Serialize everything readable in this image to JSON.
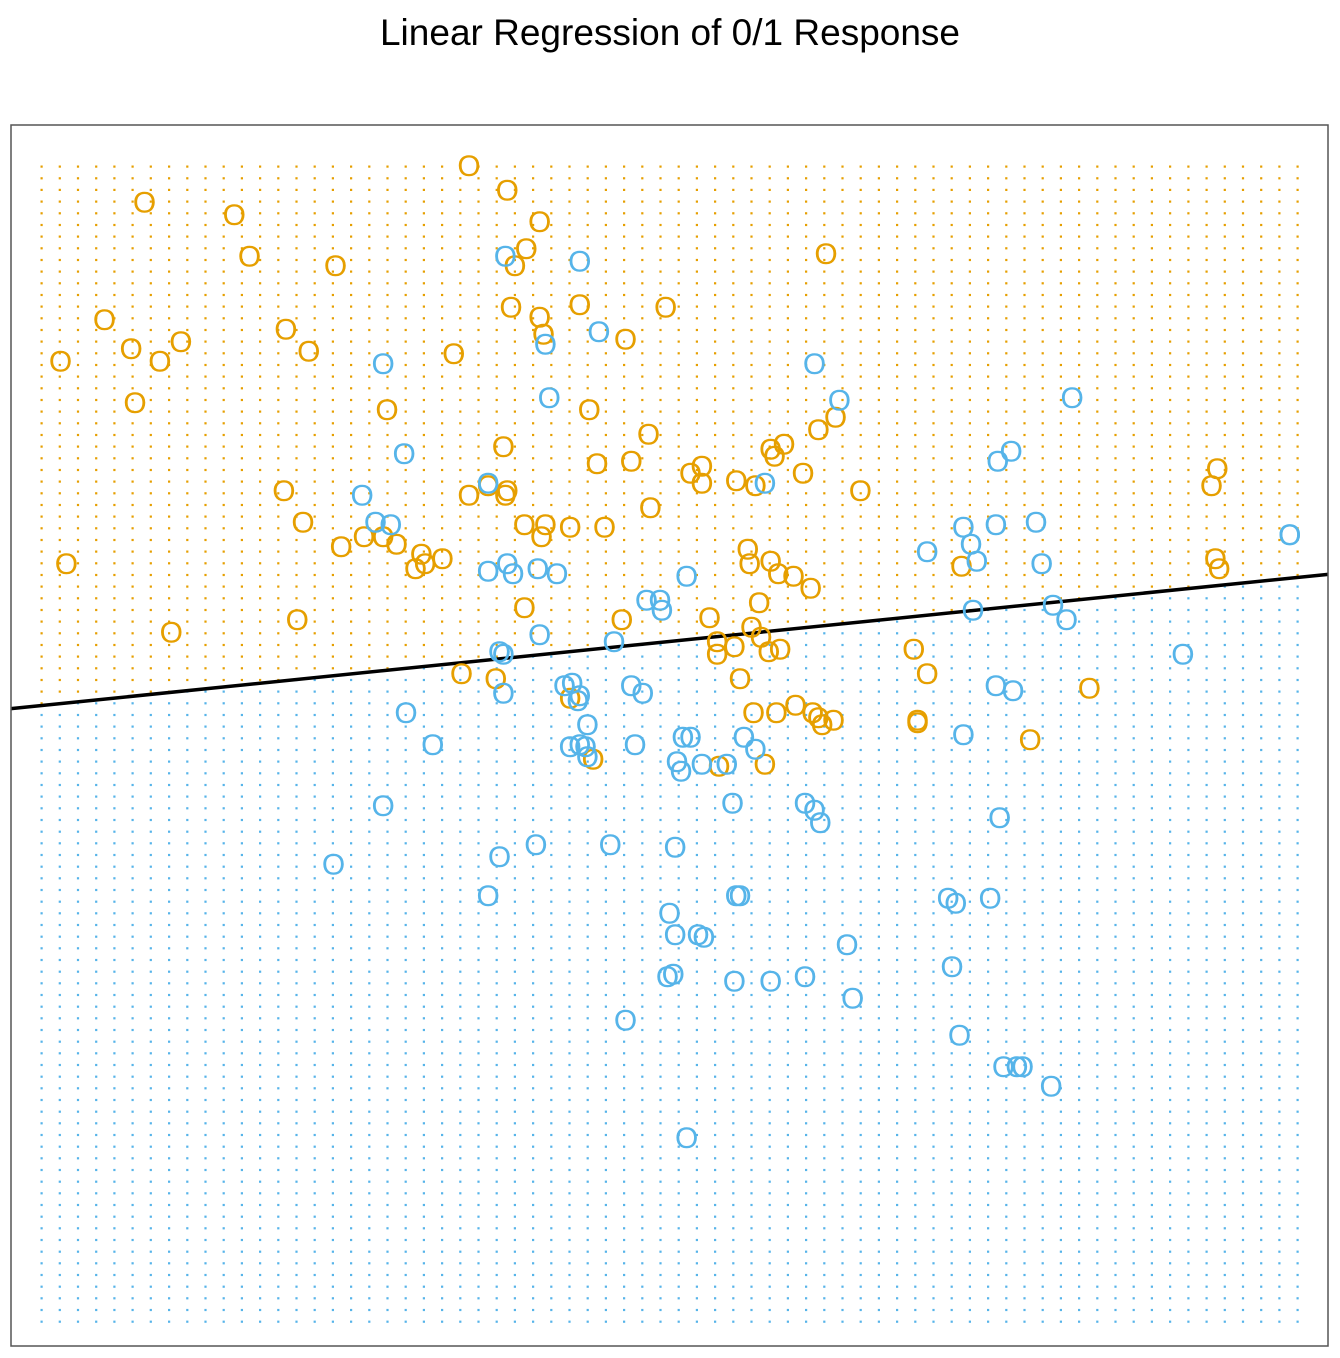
{
  "chart_data": {
    "type": "scatter",
    "title": "Linear Regression of 0/1 Response",
    "xlabel": "",
    "ylabel": "",
    "marker_glyph": "O",
    "grid": false,
    "legend": "none",
    "axes_ticks": false,
    "xlim": [
      -2.6,
      4.3
    ],
    "ylim": [
      -2.1,
      2.9
    ],
    "colors": {
      "orange": "#E69F00",
      "blue": "#56B4E9",
      "line": "#000000",
      "frame": "#555555"
    },
    "decision_boundary": {
      "x": [
        -2.6,
        4.3
      ],
      "y": [
        0.51,
        1.06
      ]
    },
    "background_grid_points": {
      "nx": 70,
      "ny": 100,
      "x_range": [
        -2.44,
        4.14
      ],
      "y_range": [
        -2.0,
        2.73
      ]
    },
    "series": [
      {
        "color": "orange",
        "points": [
          [
            -0.2,
            2.73
          ],
          [
            0.0,
            2.63
          ],
          [
            0.17,
            2.5
          ],
          [
            -1.9,
            2.58
          ],
          [
            -1.43,
            2.53
          ],
          [
            -1.35,
            2.36
          ],
          [
            -0.9,
            2.32
          ],
          [
            0.04,
            2.32
          ],
          [
            0.1,
            2.39
          ],
          [
            1.67,
            2.37
          ],
          [
            -2.11,
            2.1
          ],
          [
            -1.97,
            1.98
          ],
          [
            -1.82,
            1.93
          ],
          [
            -1.71,
            2.01
          ],
          [
            -1.16,
            2.06
          ],
          [
            -1.04,
            1.97
          ],
          [
            -0.28,
            1.96
          ],
          [
            0.02,
            2.15
          ],
          [
            0.17,
            2.11
          ],
          [
            0.19,
            2.04
          ],
          [
            0.38,
            2.16
          ],
          [
            0.62,
            2.02
          ],
          [
            0.83,
            2.15
          ],
          [
            -2.34,
            1.93
          ],
          [
            -1.95,
            1.76
          ],
          [
            -0.63,
            1.73
          ],
          [
            -0.02,
            1.58
          ],
          [
            0.43,
            1.73
          ],
          [
            0.47,
            1.51
          ],
          [
            0.65,
            1.52
          ],
          [
            0.74,
            1.63
          ],
          [
            1.4,
            1.54
          ],
          [
            1.45,
            1.59
          ],
          [
            1.55,
            1.47
          ],
          [
            1.63,
            1.65
          ],
          [
            1.72,
            1.7
          ],
          [
            1.38,
            1.57
          ],
          [
            1.3,
            1.42
          ],
          [
            1.85,
            1.4
          ],
          [
            -1.17,
            1.4
          ],
          [
            -1.07,
            1.27
          ],
          [
            -0.87,
            1.17
          ],
          [
            -0.75,
            1.21
          ],
          [
            -0.65,
            1.21
          ],
          [
            -0.58,
            1.18
          ],
          [
            -0.48,
            1.08
          ],
          [
            -0.45,
            1.14
          ],
          [
            -0.43,
            1.1
          ],
          [
            -0.34,
            1.12
          ],
          [
            -0.2,
            1.38
          ],
          [
            -0.1,
            1.42
          ],
          [
            -0.01,
            1.38
          ],
          [
            0.0,
            1.4
          ],
          [
            0.09,
            1.26
          ],
          [
            0.18,
            1.21
          ],
          [
            0.2,
            1.26
          ],
          [
            0.33,
            1.25
          ],
          [
            0.51,
            1.25
          ],
          [
            0.75,
            1.33
          ],
          [
            0.96,
            1.47
          ],
          [
            1.02,
            1.43
          ],
          [
            1.02,
            1.5
          ],
          [
            1.2,
            1.44
          ],
          [
            1.26,
            1.16
          ],
          [
            1.27,
            1.1
          ],
          [
            1.38,
            1.11
          ],
          [
            1.42,
            1.06
          ],
          [
            1.5,
            1.05
          ],
          [
            1.59,
            1.0
          ],
          [
            1.32,
            0.94
          ],
          [
            1.28,
            0.84
          ],
          [
            1.06,
            0.88
          ],
          [
            0.6,
            0.87
          ],
          [
            0.09,
            0.92
          ],
          [
            -2.31,
            1.1
          ],
          [
            -1.76,
            0.82
          ],
          [
            -1.1,
            0.87
          ],
          [
            -0.24,
            0.65
          ],
          [
            -0.06,
            0.63
          ],
          [
            1.1,
            0.78
          ],
          [
            1.19,
            0.76
          ],
          [
            1.1,
            0.73
          ],
          [
            1.33,
            0.8
          ],
          [
            1.37,
            0.74
          ],
          [
            1.43,
            0.75
          ],
          [
            2.13,
            0.75
          ],
          [
            2.2,
            0.65
          ],
          [
            1.22,
            0.63
          ],
          [
            0.33,
            0.55
          ],
          [
            1.29,
            0.49
          ],
          [
            1.41,
            0.49
          ],
          [
            1.51,
            0.52
          ],
          [
            1.6,
            0.49
          ],
          [
            1.63,
            0.47
          ],
          [
            1.65,
            0.44
          ],
          [
            1.71,
            0.46
          ],
          [
            2.15,
            0.45
          ],
          [
            2.15,
            0.46
          ],
          [
            3.05,
            0.59
          ],
          [
            2.74,
            0.38
          ],
          [
            0.45,
            0.3
          ],
          [
            1.11,
            0.27
          ],
          [
            1.35,
            0.28
          ],
          [
            3.69,
            1.42
          ],
          [
            3.72,
            1.49
          ],
          [
            3.71,
            1.12
          ],
          [
            3.73,
            1.08
          ],
          [
            2.38,
            1.09
          ]
        ]
      },
      {
        "color": "blue",
        "points": [
          [
            -0.01,
            2.36
          ],
          [
            0.38,
            2.34
          ],
          [
            0.2,
            2.0
          ],
          [
            0.48,
            2.05
          ],
          [
            -0.65,
            1.92
          ],
          [
            1.61,
            1.92
          ],
          [
            0.22,
            1.78
          ],
          [
            1.74,
            1.77
          ],
          [
            2.96,
            1.78
          ],
          [
            -0.54,
            1.55
          ],
          [
            -0.1,
            1.43
          ],
          [
            1.35,
            1.43
          ],
          [
            2.57,
            1.52
          ],
          [
            2.64,
            1.56
          ],
          [
            -0.76,
            1.38
          ],
          [
            -0.69,
            1.27
          ],
          [
            -0.61,
            1.26
          ],
          [
            2.39,
            1.25
          ],
          [
            2.56,
            1.26
          ],
          [
            2.77,
            1.27
          ],
          [
            4.1,
            1.22
          ],
          [
            2.2,
            1.15
          ],
          [
            2.43,
            1.18
          ],
          [
            2.46,
            1.11
          ],
          [
            2.8,
            1.1
          ],
          [
            -0.1,
            1.07
          ],
          [
            0.0,
            1.1
          ],
          [
            0.03,
            1.06
          ],
          [
            0.16,
            1.08
          ],
          [
            0.26,
            1.06
          ],
          [
            0.94,
            1.05
          ],
          [
            0.73,
            0.95
          ],
          [
            0.81,
            0.91
          ],
          [
            0.8,
            0.95
          ],
          [
            2.86,
            0.93
          ],
          [
            2.93,
            0.87
          ],
          [
            2.44,
            0.91
          ],
          [
            0.17,
            0.81
          ],
          [
            0.56,
            0.78
          ],
          [
            -0.04,
            0.74
          ],
          [
            -0.02,
            0.73
          ],
          [
            3.54,
            0.73
          ],
          [
            0.3,
            0.6
          ],
          [
            0.34,
            0.61
          ],
          [
            0.38,
            0.56
          ],
          [
            0.65,
            0.6
          ],
          [
            0.71,
            0.57
          ],
          [
            2.56,
            0.6
          ],
          [
            2.65,
            0.58
          ],
          [
            0.37,
            0.54
          ],
          [
            -0.02,
            0.57
          ],
          [
            -0.53,
            0.49
          ],
          [
            0.42,
            0.44
          ],
          [
            2.39,
            0.4
          ],
          [
            -0.39,
            0.36
          ],
          [
            0.33,
            0.35
          ],
          [
            0.38,
            0.36
          ],
          [
            0.41,
            0.35
          ],
          [
            0.67,
            0.36
          ],
          [
            0.92,
            0.39
          ],
          [
            0.96,
            0.39
          ],
          [
            1.24,
            0.39
          ],
          [
            1.3,
            0.34
          ],
          [
            0.42,
            0.31
          ],
          [
            0.89,
            0.29
          ],
          [
            1.02,
            0.28
          ],
          [
            0.91,
            0.25
          ],
          [
            1.15,
            0.28
          ],
          [
            -0.65,
            0.11
          ],
          [
            1.18,
            0.12
          ],
          [
            1.56,
            0.12
          ],
          [
            1.61,
            0.09
          ],
          [
            1.64,
            0.04
          ],
          [
            2.58,
            0.06
          ],
          [
            -0.91,
            -0.13
          ],
          [
            -0.04,
            -0.1
          ],
          [
            0.15,
            -0.05
          ],
          [
            0.54,
            -0.05
          ],
          [
            0.88,
            -0.06
          ],
          [
            -0.1,
            -0.26
          ],
          [
            1.2,
            -0.26
          ],
          [
            1.22,
            -0.26
          ],
          [
            2.31,
            -0.27
          ],
          [
            2.35,
            -0.29
          ],
          [
            2.53,
            -0.27
          ],
          [
            0.85,
            -0.33
          ],
          [
            0.88,
            -0.42
          ],
          [
            1.0,
            -0.42
          ],
          [
            1.03,
            -0.43
          ],
          [
            1.78,
            -0.46
          ],
          [
            0.87,
            -0.58
          ],
          [
            0.84,
            -0.59
          ],
          [
            1.19,
            -0.61
          ],
          [
            1.38,
            -0.61
          ],
          [
            1.56,
            -0.59
          ],
          [
            2.33,
            -0.55
          ],
          [
            0.62,
            -0.77
          ],
          [
            1.81,
            -0.68
          ],
          [
            2.37,
            -0.83
          ],
          [
            2.6,
            -0.96
          ],
          [
            2.67,
            -0.96
          ],
          [
            2.7,
            -0.96
          ],
          [
            2.85,
            -1.04
          ],
          [
            0.94,
            -1.25
          ],
          [
            4.1,
            1.22
          ]
        ]
      }
    ]
  }
}
